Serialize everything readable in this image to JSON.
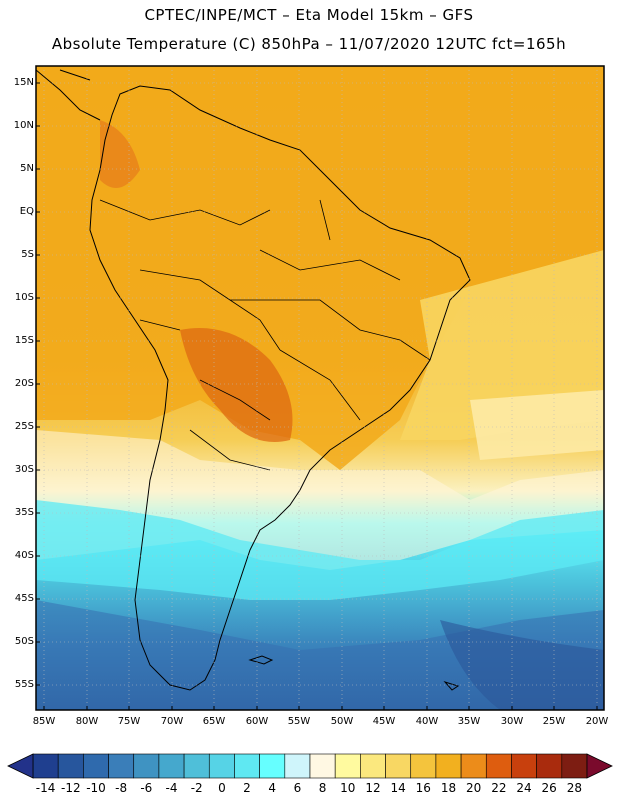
{
  "header": {
    "line1": "CPTEC/INPE/MCT –  Eta Model 15km – GFS",
    "line2": "Absolute Temperature (C) 850hPa – 11/07/2020 12UTC fct=165h"
  },
  "map": {
    "lat_labels": [
      "15N",
      "10N",
      "5N",
      "EQ",
      "5S",
      "10S",
      "15S",
      "20S",
      "25S",
      "30S",
      "35S",
      "40S",
      "45S",
      "50S",
      "55S"
    ],
    "lon_labels": [
      "85W",
      "80W",
      "75W",
      "70W",
      "65W",
      "60W",
      "55W",
      "50W",
      "45W",
      "40W",
      "35W",
      "30W",
      "25W",
      "20W"
    ]
  },
  "colorbar": {
    "labels": [
      "-14",
      "-12",
      "-10",
      "-8",
      "-6",
      "-4",
      "-2",
      "0",
      "2",
      "4",
      "6",
      "8",
      "10",
      "12",
      "14",
      "16",
      "18",
      "20",
      "22",
      "24",
      "26",
      "28"
    ],
    "colors": [
      "#1f3f8f",
      "#27569d",
      "#2f6aad",
      "#3a7eb9",
      "#3f93c2",
      "#45a8cd",
      "#4fbfd9",
      "#56d3e6",
      "#5fe8f2",
      "#66ffff",
      "#cff5fb",
      "#fff8e3",
      "#fffa9f",
      "#fbe87e",
      "#f8d763",
      "#f4c43d",
      "#f2b01f",
      "#ec8c1a",
      "#de5d0f",
      "#c8400d",
      "#a92b0d",
      "#7d1d12"
    ],
    "under_color": "#22328a",
    "over_color": "#7a0a2c"
  }
}
